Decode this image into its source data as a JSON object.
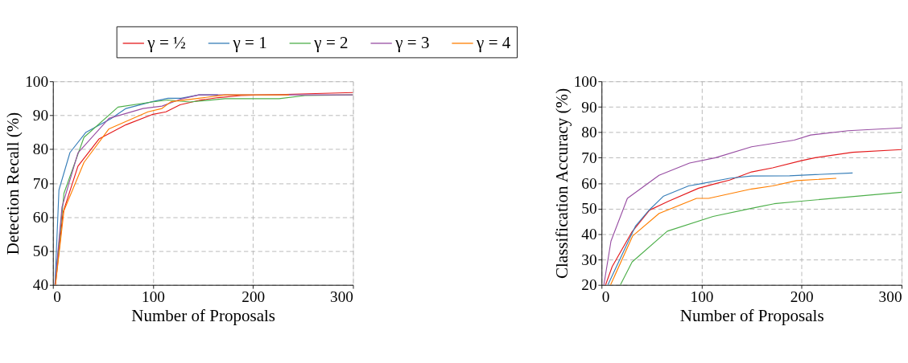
{
  "chart_data": [
    {
      "type": "line",
      "xlabel": "Number of Proposals",
      "ylabel": "Detection Recall (%)",
      "xlim": [
        0,
        300
      ],
      "ylim": [
        40,
        100
      ],
      "xticks": [
        0,
        100,
        200,
        300
      ],
      "yticks": [
        40,
        50,
        60,
        70,
        80,
        90,
        100
      ],
      "grid": true,
      "legend": "top",
      "series": [
        {
          "name": "γ = ½",
          "color": "#e41a1c",
          "x": [
            2.5,
            10,
            25,
            46,
            73,
            99,
            113,
            127,
            146,
            165,
            188,
            300
          ],
          "values": [
            40,
            61.3,
            75,
            83,
            87.2,
            90.2,
            91,
            93.1,
            94.4,
            95.2,
            95.8,
            96.7
          ]
        },
        {
          "name": "γ = 1",
          "color": "#377eb8",
          "x": [
            2,
            6,
            17,
            33,
            58,
            73,
            99,
            115,
            128,
            146,
            165
          ],
          "values": [
            40,
            68,
            79,
            85,
            89,
            92,
            94,
            95,
            95,
            96,
            96
          ]
        },
        {
          "name": "γ = 2",
          "color": "#4daf4a",
          "x": [
            2,
            11,
            31,
            65,
            99,
            115,
            137,
            172,
            226,
            252,
            300
          ],
          "values": [
            40,
            67,
            83.5,
            92.4,
            93.9,
            94.5,
            93.9,
            94.9,
            94.9,
            95.8,
            96
          ]
        },
        {
          "name": "γ = 3",
          "color": "#984ea3",
          "x": [
            2,
            9,
            25,
            56,
            90,
            109,
            127,
            146,
            300
          ],
          "values": [
            40,
            62.9,
            78.9,
            89.1,
            92,
            92.7,
            94.7,
            96,
            96
          ]
        },
        {
          "name": "γ = 4",
          "color": "#ff7f00",
          "x": [
            2.5,
            11,
            31,
            56,
            95,
            109,
            118,
            146,
            172,
            236
          ],
          "values": [
            40,
            61.9,
            76.1,
            86,
            91,
            92,
            94,
            95,
            96,
            96
          ]
        }
      ]
    },
    {
      "type": "line",
      "xlabel": "Number of Proposals",
      "ylabel": "Classification Accuracy (%)",
      "xlim": [
        0,
        300
      ],
      "ylim": [
        20,
        100
      ],
      "xticks": [
        0,
        100,
        200,
        300
      ],
      "yticks": [
        20,
        30,
        40,
        50,
        60,
        70,
        80,
        90,
        100
      ],
      "grid": true,
      "series": [
        {
          "color": "#e41a1c",
          "x": [
            4,
            10.6,
            30.5,
            48,
            67,
            97,
            114,
            128,
            150,
            171,
            199.5,
            213.6,
            251,
            300
          ],
          "values": [
            20,
            27.2,
            40.9,
            49.4,
            52.9,
            58,
            59.8,
            61.2,
            64.4,
            66,
            68.8,
            70,
            72.1,
            73.2
          ]
        },
        {
          "color": "#377eb8",
          "x": [
            6.3,
            34,
            47,
            62,
            87,
            100,
            128,
            150,
            188,
            251
          ],
          "values": [
            20,
            43.2,
            49.2,
            54.9,
            58.9,
            59.8,
            61.9,
            62.8,
            62.9,
            64
          ]
        },
        {
          "color": "#4daf4a",
          "x": [
            18.8,
            30.5,
            65.7,
            111.5,
            150,
            172.5,
            199.5,
            300
          ],
          "values": [
            20,
            29,
            41.1,
            46.9,
            50.1,
            51.9,
            52.9,
            56.4
          ]
        },
        {
          "color": "#984ea3",
          "x": [
            2.3,
            9.4,
            25.8,
            57.5,
            88,
            114,
            150,
            192.5,
            209,
            246.5,
            300
          ],
          "values": [
            20,
            37.2,
            54,
            63.1,
            67.9,
            70,
            74.3,
            76.9,
            78.9,
            80.6,
            81.7
          ]
        },
        {
          "color": "#ff7f00",
          "x": [
            9,
            31,
            57.5,
            95,
            107,
            150,
            171,
            195,
            234.7
          ],
          "values": [
            20,
            39.2,
            48.1,
            54,
            54,
            57.7,
            58.9,
            61,
            61.9
          ]
        }
      ]
    }
  ]
}
